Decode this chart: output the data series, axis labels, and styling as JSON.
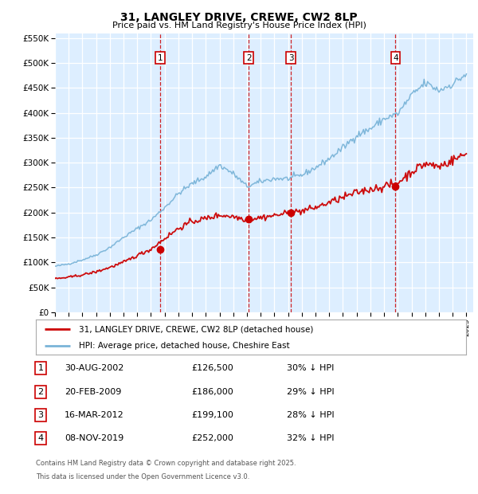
{
  "title": "31, LANGLEY DRIVE, CREWE, CW2 8LP",
  "subtitle": "Price paid vs. HM Land Registry's House Price Index (HPI)",
  "ylim": [
    0,
    560000
  ],
  "yticks": [
    0,
    50000,
    100000,
    150000,
    200000,
    250000,
    300000,
    350000,
    400000,
    450000,
    500000,
    550000
  ],
  "xlim_start": 1995.0,
  "xlim_end": 2025.5,
  "bg_color": "#ddeeff",
  "red_color": "#cc0000",
  "blue_color": "#7ab4d8",
  "sale_dates": [
    2002.667,
    2009.125,
    2012.208,
    2019.833
  ],
  "sale_prices": [
    126500,
    186000,
    199100,
    252000
  ],
  "sale_labels": [
    "1",
    "2",
    "3",
    "4"
  ],
  "vline_color": "#cc0000",
  "grid_color": "#ffffff",
  "footer_line1": "Contains HM Land Registry data © Crown copyright and database right 2025.",
  "footer_line2": "This data is licensed under the Open Government Licence v3.0.",
  "legend_line1": "31, LANGLEY DRIVE, CREWE, CW2 8LP (detached house)",
  "legend_line2": "HPI: Average price, detached house, Cheshire East",
  "table_rows": [
    [
      "1",
      "30-AUG-2002",
      "£126,500",
      "30% ↓ HPI"
    ],
    [
      "2",
      "20-FEB-2009",
      "£186,000",
      "29% ↓ HPI"
    ],
    [
      "3",
      "16-MAR-2012",
      "£199,100",
      "28% ↓ HPI"
    ],
    [
      "4",
      "08-NOV-2019",
      "£252,000",
      "32% ↓ HPI"
    ]
  ],
  "hpi_years": [
    1995,
    1996,
    1997,
    1998,
    1999,
    2000,
    2001,
    2002,
    2003,
    2004,
    2005,
    2006,
    2007,
    2008,
    2009,
    2010,
    2011,
    2012,
    2013,
    2014,
    2015,
    2016,
    2017,
    2018,
    2019,
    2020,
    2021,
    2022,
    2023,
    2024,
    2025
  ],
  "hpi_vals": [
    92000,
    97000,
    105000,
    115000,
    130000,
    150000,
    168000,
    185000,
    210000,
    238000,
    258000,
    272000,
    295000,
    278000,
    252000,
    262000,
    268000,
    268000,
    275000,
    290000,
    308000,
    330000,
    355000,
    368000,
    388000,
    398000,
    435000,
    460000,
    445000,
    458000,
    478000
  ],
  "red_years": [
    1995,
    1996,
    1997,
    1998,
    1999,
    2000,
    2001,
    2002,
    2003,
    2004,
    2005,
    2006,
    2007,
    2008,
    2009,
    2010,
    2011,
    2012,
    2013,
    2014,
    2015,
    2016,
    2017,
    2018,
    2019,
    2020,
    2021,
    2022,
    2023,
    2024,
    2025
  ],
  "red_vals": [
    67000,
    70000,
    75000,
    81000,
    90000,
    100000,
    114000,
    126500,
    148000,
    168000,
    182000,
    188000,
    195000,
    192000,
    186000,
    190000,
    194000,
    199100,
    203000,
    210000,
    220000,
    230000,
    240000,
    247000,
    252000,
    260000,
    282000,
    298000,
    292000,
    305000,
    318000
  ]
}
